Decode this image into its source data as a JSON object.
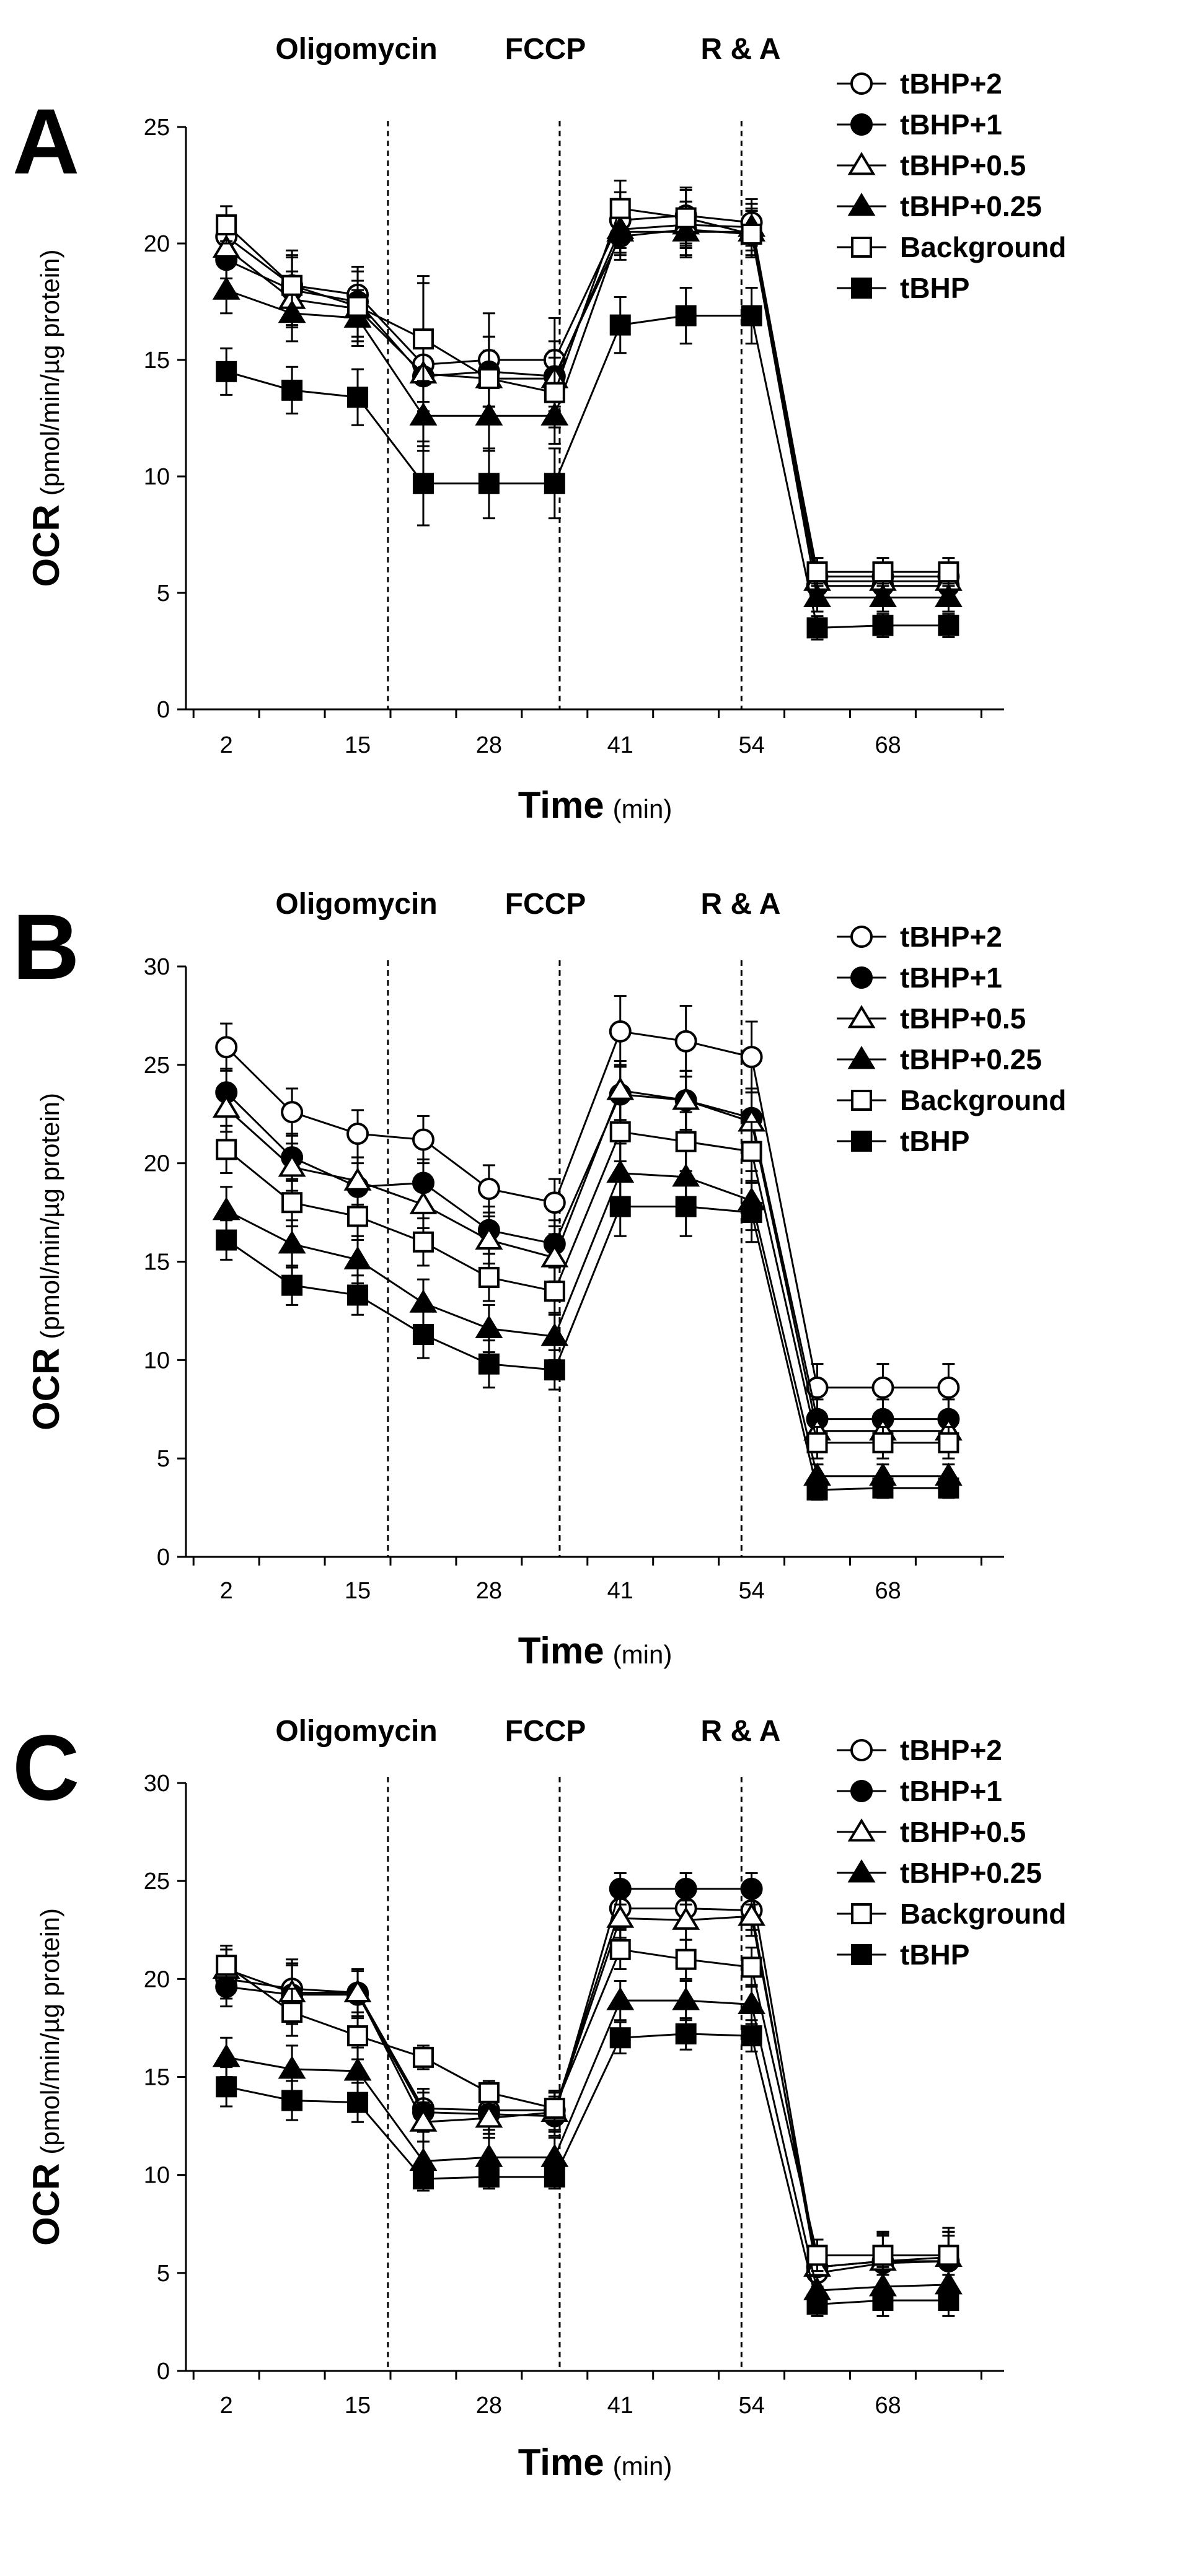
{
  "figure": {
    "x_ticks": [
      "2",
      "15",
      "28",
      "41",
      "54",
      "68"
    ],
    "x_time_positions": [
      2,
      15,
      28,
      41,
      54,
      67.5
    ],
    "point_times": [
      2,
      8.5,
      15,
      21.5,
      28,
      34.5,
      41,
      47.5,
      54,
      60.5,
      67,
      73.5
    ],
    "injection_times": [
      18,
      35,
      53
    ],
    "injection_labels": [
      "Oligomycin",
      "FCCP",
      "R & A"
    ],
    "x_axis": {
      "title": "Time",
      "unit": "(min)"
    },
    "y_axis": {
      "title": "OCR",
      "unit": "(pmol/min/µg protein)"
    },
    "legend": [
      "tBHP+2",
      "tBHP+1",
      "tBHP+0.5",
      "tBHP+0.25",
      "Background",
      "tBHP"
    ],
    "markers": [
      "circle-open",
      "circle-filled",
      "triangle-open",
      "triangle-filled",
      "square-open",
      "square-filled"
    ]
  },
  "chart_data": [
    {
      "type": "line",
      "panel": "A",
      "title": "",
      "xlabel": "Time (min)",
      "ylabel": "OCR (pmol/min/µg protein)",
      "ylim": [
        0,
        25
      ],
      "y_ticks": [
        "0",
        "5",
        "10",
        "15",
        "20",
        "25"
      ],
      "y_tick_values": [
        0,
        5,
        10,
        15,
        20,
        25
      ],
      "x": [
        2,
        8.5,
        15,
        21.5,
        28,
        34.5,
        41,
        47.5,
        54,
        60.5,
        67,
        73.5
      ],
      "series": [
        {
          "name": "tBHP+2",
          "values": [
            20.3,
            18.2,
            17.8,
            14.8,
            15.0,
            15.0,
            21.0,
            21.2,
            20.9,
            5.7,
            5.7,
            5.7
          ],
          "errors": [
            0.8,
            1.2,
            1.2,
            3.5,
            2.0,
            1.8,
            1.2,
            1.2,
            1.0,
            0.6,
            0.6,
            0.6
          ]
        },
        {
          "name": "tBHP+1",
          "values": [
            19.3,
            18.0,
            17.5,
            14.3,
            14.5,
            14.3,
            20.3,
            20.6,
            20.4,
            5.3,
            5.3,
            5.3
          ],
          "errors": [
            0.8,
            1.5,
            1.5,
            1.5,
            1.5,
            1.5,
            1.0,
            1.2,
            1.0,
            0.6,
            0.6,
            0.6
          ]
        },
        {
          "name": "tBHP+0.5",
          "values": [
            19.8,
            17.6,
            17.2,
            14.4,
            14.2,
            14.2,
            20.6,
            20.8,
            20.7,
            5.5,
            5.5,
            5.5
          ],
          "errors": [
            0.8,
            1.2,
            1.2,
            1.2,
            1.2,
            1.2,
            1.0,
            1.0,
            1.0,
            0.6,
            0.6,
            0.6
          ]
        },
        {
          "name": "tBHP+0.25",
          "values": [
            18.0,
            17.0,
            16.8,
            12.6,
            12.6,
            12.6,
            20.5,
            20.5,
            20.5,
            4.8,
            4.8,
            4.8
          ],
          "errors": [
            1.0,
            1.2,
            1.2,
            1.5,
            1.5,
            1.2,
            1.0,
            1.0,
            1.0,
            0.6,
            0.6,
            0.6
          ]
        },
        {
          "name": "Background",
          "values": [
            20.8,
            18.2,
            17.3,
            15.9,
            14.2,
            13.6,
            21.5,
            21.1,
            20.4,
            5.9,
            5.9,
            5.9
          ],
          "errors": [
            0.8,
            1.5,
            1.5,
            2.7,
            1.8,
            1.5,
            1.2,
            1.2,
            1.0,
            0.6,
            0.6,
            0.6
          ]
        },
        {
          "name": "tBHP",
          "values": [
            14.5,
            13.7,
            13.4,
            9.7,
            9.7,
            9.7,
            16.5,
            16.9,
            16.9,
            3.5,
            3.6,
            3.6
          ],
          "errors": [
            1.0,
            1.0,
            1.2,
            1.8,
            1.5,
            1.5,
            1.2,
            1.2,
            1.2,
            0.5,
            0.5,
            0.5
          ]
        }
      ]
    },
    {
      "type": "line",
      "panel": "B",
      "title": "",
      "xlabel": "Time (min)",
      "ylabel": "OCR (pmol/min/µg protein)",
      "ylim": [
        0,
        30
      ],
      "y_ticks": [
        "0",
        "5",
        "10",
        "15",
        "20",
        "25",
        "30"
      ],
      "y_tick_values": [
        0,
        5,
        10,
        15,
        20,
        25,
        30
      ],
      "x": [
        2,
        8.5,
        15,
        21.5,
        28,
        34.5,
        41,
        47.5,
        54,
        60.5,
        67,
        73.5
      ],
      "series": [
        {
          "name": "tBHP+2",
          "values": [
            25.9,
            22.6,
            21.5,
            21.2,
            18.7,
            18.0,
            26.7,
            26.2,
            25.4,
            8.6,
            8.6,
            8.6
          ],
          "errors": [
            1.2,
            1.2,
            1.2,
            1.2,
            1.2,
            1.2,
            1.8,
            1.8,
            1.8,
            1.2,
            1.2,
            1.2
          ]
        },
        {
          "name": "tBHP+1",
          "values": [
            23.6,
            20.3,
            18.8,
            19.0,
            16.6,
            15.9,
            23.5,
            23.2,
            22.3,
            7.0,
            7.0,
            7.0
          ],
          "errors": [
            1.2,
            1.2,
            1.2,
            1.2,
            1.2,
            1.2,
            1.5,
            1.5,
            1.5,
            1.0,
            1.0,
            1.0
          ]
        },
        {
          "name": "tBHP+0.5",
          "values": [
            22.8,
            19.8,
            19.1,
            17.9,
            16.1,
            15.2,
            23.7,
            23.2,
            22.1,
            6.4,
            6.4,
            6.4
          ],
          "errors": [
            1.2,
            1.2,
            1.2,
            1.2,
            1.2,
            1.2,
            1.5,
            1.5,
            1.5,
            1.0,
            1.0,
            1.0
          ]
        },
        {
          "name": "tBHP+0.25",
          "values": [
            17.6,
            15.9,
            15.1,
            12.9,
            11.6,
            11.2,
            19.5,
            19.3,
            18.1,
            4.1,
            4.1,
            4.1
          ],
          "errors": [
            1.2,
            1.2,
            1.2,
            1.2,
            1.2,
            1.2,
            1.5,
            1.5,
            1.5,
            0.6,
            0.6,
            0.6
          ]
        },
        {
          "name": "Background",
          "values": [
            20.7,
            18.0,
            17.3,
            16.0,
            14.2,
            13.5,
            21.6,
            21.1,
            20.6,
            5.8,
            5.8,
            5.8
          ],
          "errors": [
            1.2,
            1.2,
            1.2,
            1.2,
            1.2,
            1.2,
            1.5,
            1.5,
            1.5,
            0.8,
            0.8,
            0.8
          ]
        },
        {
          "name": "tBHP",
          "values": [
            16.1,
            13.8,
            13.3,
            11.3,
            9.8,
            9.5,
            17.8,
            17.8,
            17.5,
            3.4,
            3.5,
            3.5
          ],
          "errors": [
            1.0,
            1.0,
            1.0,
            1.2,
            1.2,
            1.0,
            1.5,
            1.5,
            1.5,
            0.5,
            0.5,
            0.5
          ]
        }
      ]
    },
    {
      "type": "line",
      "panel": "C",
      "title": "",
      "xlabel": "Time (min)",
      "ylabel": "OCR (pmol/min/µg protein)",
      "ylim": [
        0,
        30
      ],
      "y_ticks": [
        "0",
        "5",
        "10",
        "15",
        "20",
        "25",
        "30"
      ],
      "y_tick_values": [
        0,
        5,
        10,
        15,
        20,
        25,
        30
      ],
      "x": [
        2,
        8.5,
        15,
        21.5,
        28,
        34.5,
        41,
        47.5,
        54,
        60.5,
        67,
        73.5
      ],
      "series": [
        {
          "name": "tBHP+2",
          "values": [
            20.0,
            19.5,
            19.3,
            13.4,
            13.3,
            13.3,
            23.6,
            23.6,
            23.5,
            5.0,
            5.5,
            5.6
          ],
          "errors": [
            1.0,
            1.5,
            1.2,
            1.0,
            1.0,
            1.0,
            1.0,
            1.0,
            1.0,
            1.0,
            1.5,
            1.5
          ]
        },
        {
          "name": "tBHP+1",
          "values": [
            19.6,
            19.2,
            19.2,
            13.2,
            13.1,
            13.0,
            24.6,
            24.6,
            24.6,
            5.3,
            5.6,
            5.6
          ],
          "errors": [
            1.0,
            1.5,
            1.2,
            1.0,
            1.0,
            1.0,
            0.8,
            0.8,
            0.8,
            1.0,
            1.5,
            1.5
          ]
        },
        {
          "name": "tBHP+0.5",
          "values": [
            20.5,
            19.3,
            19.3,
            12.7,
            12.9,
            13.2,
            23.1,
            23.0,
            23.2,
            5.3,
            5.6,
            5.8
          ],
          "errors": [
            1.0,
            1.5,
            1.2,
            1.0,
            1.0,
            1.0,
            1.0,
            1.0,
            1.0,
            1.0,
            1.5,
            1.5
          ]
        },
        {
          "name": "tBHP+0.25",
          "values": [
            16.0,
            15.4,
            15.3,
            10.7,
            10.9,
            10.9,
            18.9,
            18.9,
            18.7,
            4.1,
            4.3,
            4.4
          ],
          "errors": [
            1.0,
            1.2,
            1.2,
            1.0,
            1.0,
            1.0,
            1.0,
            1.0,
            1.0,
            0.8,
            1.0,
            1.0
          ]
        },
        {
          "name": "Background",
          "values": [
            20.7,
            18.3,
            17.1,
            16.0,
            14.2,
            13.4,
            21.5,
            21.0,
            20.6,
            5.9,
            5.9,
            5.9
          ],
          "errors": [
            1.0,
            1.2,
            1.2,
            0.6,
            0.6,
            0.8,
            1.0,
            1.0,
            1.0,
            0.8,
            1.0,
            1.0
          ]
        },
        {
          "name": "tBHP",
          "values": [
            14.5,
            13.8,
            13.7,
            9.8,
            9.9,
            9.9,
            17.0,
            17.2,
            17.1,
            3.4,
            3.6,
            3.6
          ],
          "errors": [
            1.0,
            1.0,
            1.0,
            0.6,
            0.6,
            0.6,
            0.8,
            0.8,
            0.8,
            0.6,
            0.8,
            0.8
          ]
        }
      ]
    }
  ]
}
